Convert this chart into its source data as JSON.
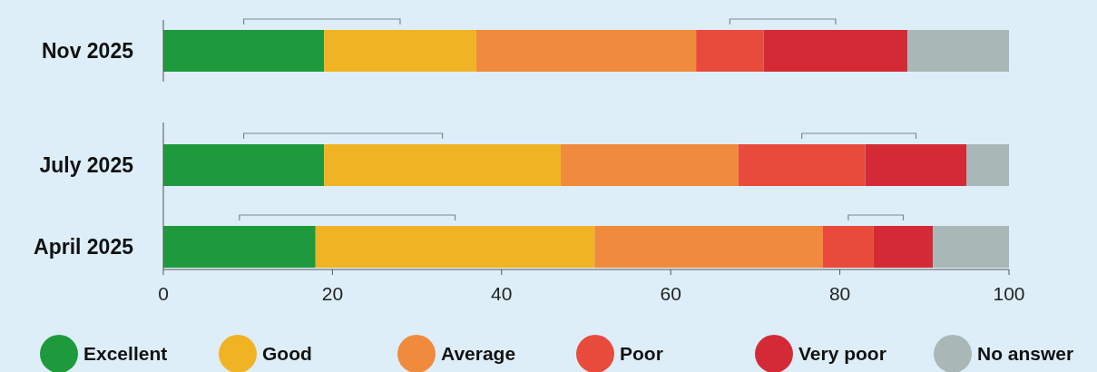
{
  "chart_data": {
    "type": "bar",
    "orientation": "horizontal",
    "stacked": true,
    "categories": [
      "Nov 2025",
      "July 2025",
      "April 2025"
    ],
    "series": [
      {
        "name": "Excellent",
        "color": "#1e9a3c",
        "values": [
          19,
          19,
          18
        ]
      },
      {
        "name": "Good",
        "color": "#f0b323",
        "values": [
          18,
          28,
          33
        ]
      },
      {
        "name": "Average",
        "color": "#f08a3c",
        "values": [
          26,
          21,
          27
        ]
      },
      {
        "name": "Poor",
        "color": "#e84b3c",
        "values": [
          8,
          15,
          6
        ]
      },
      {
        "name": "Very poor",
        "color": "#d42a36",
        "values": [
          17,
          12,
          7
        ]
      },
      {
        "name": "No answer",
        "color": "#a9b8b6",
        "values": [
          12,
          5,
          9
        ]
      }
    ],
    "xlim": [
      0,
      100
    ],
    "xticks": [
      0,
      20,
      40,
      60,
      80,
      100
    ],
    "legend": "bottom",
    "grid": false
  }
}
